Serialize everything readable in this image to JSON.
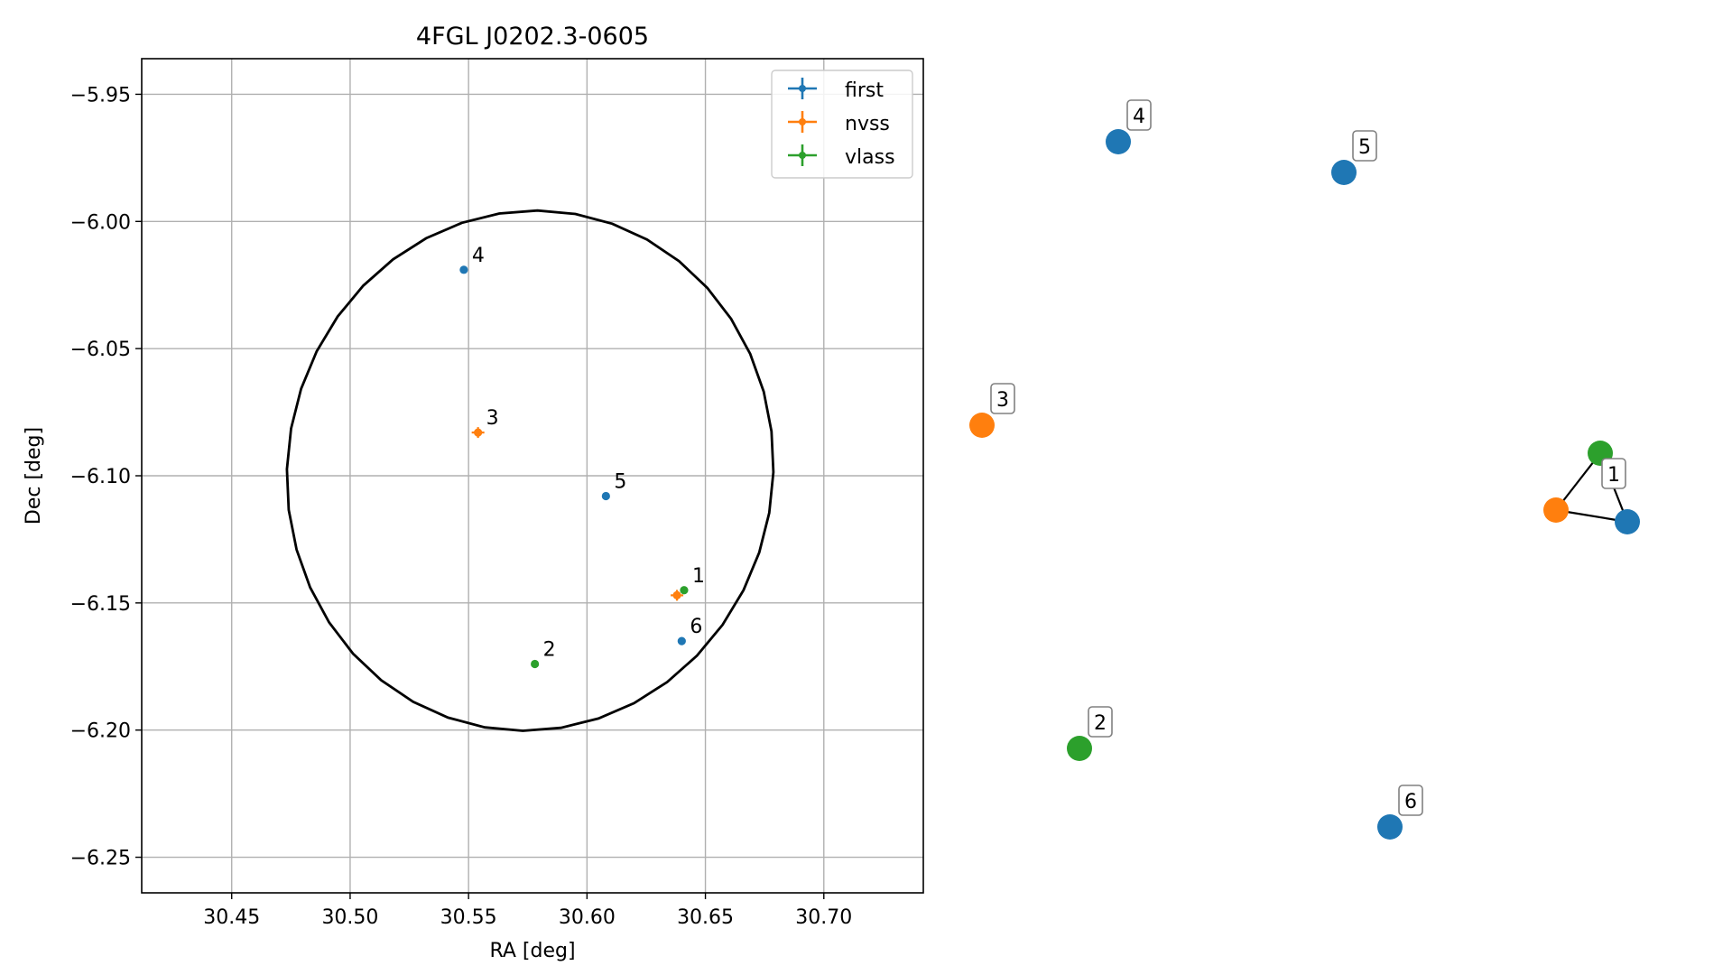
{
  "chart_data": [
    {
      "type": "scatter",
      "title": "4FGL J0202.3-0605",
      "xlabel": "RA [deg]",
      "ylabel": "Dec [deg]",
      "xlim": [
        30.412,
        30.742
      ],
      "ylim": [
        -6.264,
        -5.936
      ],
      "xticks": [
        "30.45",
        "30.50",
        "30.55",
        "30.60",
        "30.65",
        "30.70"
      ],
      "yticks": [
        "−5.95",
        "−6.00",
        "−6.05",
        "−6.10",
        "−6.15",
        "−6.20",
        "−6.25"
      ],
      "grid": true,
      "legend_position": "upper right",
      "colors": {
        "first": "#1f77b4",
        "nvss": "#ff7f0e",
        "vlass": "#2ca02c"
      },
      "series": [
        {
          "name": "first",
          "points": [
            {
              "label": "4",
              "x": 30.548,
              "y": -6.019
            },
            {
              "label": "5",
              "x": 30.608,
              "y": -6.108
            },
            {
              "label": "6",
              "x": 30.64,
              "y": -6.165
            }
          ]
        },
        {
          "name": "nvss",
          "points": [
            {
              "label": "3",
              "x": 30.554,
              "y": -6.083
            },
            {
              "label": "",
              "x": 30.638,
              "y": -6.147
            }
          ]
        },
        {
          "name": "vlass",
          "points": [
            {
              "label": "1",
              "x": 30.641,
              "y": -6.145
            },
            {
              "label": "2",
              "x": 30.578,
              "y": -6.174
            }
          ]
        }
      ],
      "ellipse": {
        "center": [
          30.576,
          -6.098
        ],
        "semi_axis_ra": 0.1025,
        "semi_axis_dec": 0.1025,
        "tilt_deg": 10
      }
    },
    {
      "type": "graph",
      "nodes": [
        {
          "id": "n4",
          "label": "4",
          "catalog": "first"
        },
        {
          "id": "n5",
          "label": "5",
          "catalog": "first"
        },
        {
          "id": "n3",
          "label": "3",
          "catalog": "nvss"
        },
        {
          "id": "n1g",
          "label": "",
          "catalog": "vlass"
        },
        {
          "id": "n1o",
          "label": "",
          "catalog": "nvss"
        },
        {
          "id": "n1b",
          "label": "1",
          "catalog": "first"
        },
        {
          "id": "n2",
          "label": "2",
          "catalog": "vlass"
        },
        {
          "id": "n6",
          "label": "6",
          "catalog": "first"
        }
      ],
      "edges": [
        [
          "n1g",
          "n1o"
        ],
        [
          "n1g",
          "n1b"
        ],
        [
          "n1o",
          "n1b"
        ]
      ]
    }
  ]
}
